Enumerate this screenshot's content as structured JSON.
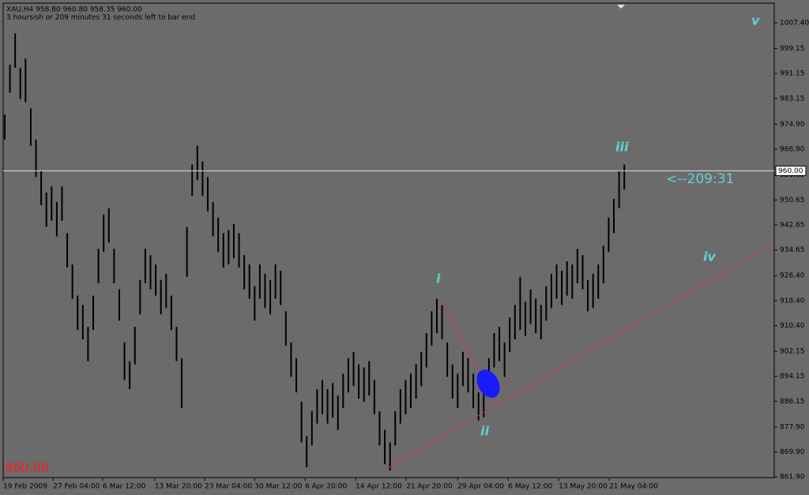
{
  "chart_data": {
    "type": "ohlc",
    "header": "XAU,H4  958.80 960.80 958.35 960.00",
    "subheader": "3 hoursish or 209 minutes 31 seconds left to bar end",
    "countdown": "<--209:31",
    "current_price": 960,
    "current_price_label": "960.00",
    "wave_labels": [
      "i",
      "ii",
      "iii",
      "iv",
      "v"
    ],
    "bar_color": "#000000",
    "high": [
      978,
      994,
      1004,
      993,
      996,
      980,
      970,
      960,
      953,
      955,
      950,
      955,
      940,
      930,
      920,
      917,
      910,
      920,
      935,
      946,
      948,
      935,
      922,
      905,
      899,
      910,
      925,
      935,
      933,
      930,
      925,
      927,
      920,
      910,
      900,
      942,
      962,
      968,
      963,
      958,
      950,
      945,
      940,
      941,
      943,
      940,
      933,
      930,
      923,
      930,
      927,
      925,
      930,
      928,
      915,
      905,
      900,
      886,
      875,
      883,
      890,
      893,
      890,
      892,
      888,
      895,
      900,
      902,
      898,
      897,
      899,
      893,
      883,
      877,
      873,
      883,
      890,
      893,
      895,
      898,
      902,
      908,
      915,
      919,
      917,
      905,
      898,
      895,
      902,
      900,
      895,
      889,
      892,
      900,
      908,
      910,
      905,
      913,
      917,
      926,
      918,
      922,
      919,
      917,
      923,
      927,
      930,
      928,
      931,
      930,
      935,
      933,
      925,
      927,
      930,
      936,
      945,
      951,
      960,
      962
    ],
    "low": [
      970,
      985,
      993,
      983,
      982,
      968,
      958,
      949,
      942,
      944,
      939,
      944,
      929,
      919,
      909,
      906,
      899,
      909,
      924,
      934,
      937,
      924,
      912,
      893,
      890,
      898,
      914,
      924,
      922,
      920,
      914,
      916,
      909,
      899,
      884,
      926,
      952,
      957,
      952,
      947,
      939,
      934,
      929,
      930,
      932,
      929,
      922,
      919,
      912,
      919,
      916,
      914,
      919,
      917,
      904,
      894,
      889,
      873,
      865,
      872,
      879,
      882,
      879,
      881,
      877,
      884,
      889,
      891,
      887,
      886,
      888,
      882,
      872,
      866,
      864,
      872,
      879,
      882,
      884,
      887,
      891,
      897,
      904,
      908,
      906,
      894,
      887,
      884,
      891,
      889,
      884,
      880,
      881,
      889,
      897,
      899,
      894,
      902,
      906,
      909,
      907,
      911,
      908,
      906,
      912,
      916,
      919,
      917,
      920,
      919,
      924,
      922,
      915,
      916,
      919,
      924,
      934,
      940,
      948,
      954
    ],
    "xlim": [
      -0.3,
      147.8
    ],
    "ylim": [
      861.7,
      1013.7
    ],
    "xticks": [
      {
        "value": -0.3,
        "label": "19 Feb 2009"
      },
      {
        "value": 9.3,
        "label": "27 Feb 04:00"
      },
      {
        "value": 18.8,
        "label": "6 Mar 12:00"
      },
      {
        "value": 28.8,
        "label": "13 Mar 20:00"
      },
      {
        "value": 38.4,
        "label": "23 Mar 04:00"
      },
      {
        "value": 48,
        "label": "30 Mar 12:00"
      },
      {
        "value": 57.7,
        "label": "6 Apr 20:00"
      },
      {
        "value": 67.4,
        "label": "14 Apr 12:00"
      },
      {
        "value": 77.1,
        "label": "21 Apr 20:00"
      },
      {
        "value": 87,
        "label": "29 Apr 04:00"
      },
      {
        "value": 96.7,
        "label": "6 May 12:00"
      },
      {
        "value": 106.4,
        "label": "13 May 20:00"
      },
      {
        "value": 116.1,
        "label": "21 May 04:00"
      }
    ],
    "yticks": [
      {
        "value": 1007.4,
        "label": "1007.40"
      },
      {
        "value": 999.15,
        "label": "999.15"
      },
      {
        "value": 991.15,
        "label": "991.15"
      },
      {
        "value": 983.15,
        "label": "983.15"
      },
      {
        "value": 974.9,
        "label": "974.90"
      },
      {
        "value": 966.9,
        "label": "966.90"
      },
      {
        "value": 958.65,
        "label": "958.65"
      },
      {
        "value": 950.65,
        "label": "950.65"
      },
      {
        "value": 942.65,
        "label": "942.65"
      },
      {
        "value": 934.65,
        "label": "934.65"
      },
      {
        "value": 926.4,
        "label": "926.40"
      },
      {
        "value": 918.4,
        "label": "918.40"
      },
      {
        "value": 910.4,
        "label": "910.40"
      },
      {
        "value": 902.15,
        "label": "902.15"
      },
      {
        "value": 894.15,
        "label": "894.15"
      },
      {
        "value": 886.15,
        "label": "886.15"
      },
      {
        "value": 877.9,
        "label": "877.90"
      },
      {
        "value": 869.9,
        "label": "869.90"
      },
      {
        "value": 861.9,
        "label": "861.90"
      }
    ]
  }
}
